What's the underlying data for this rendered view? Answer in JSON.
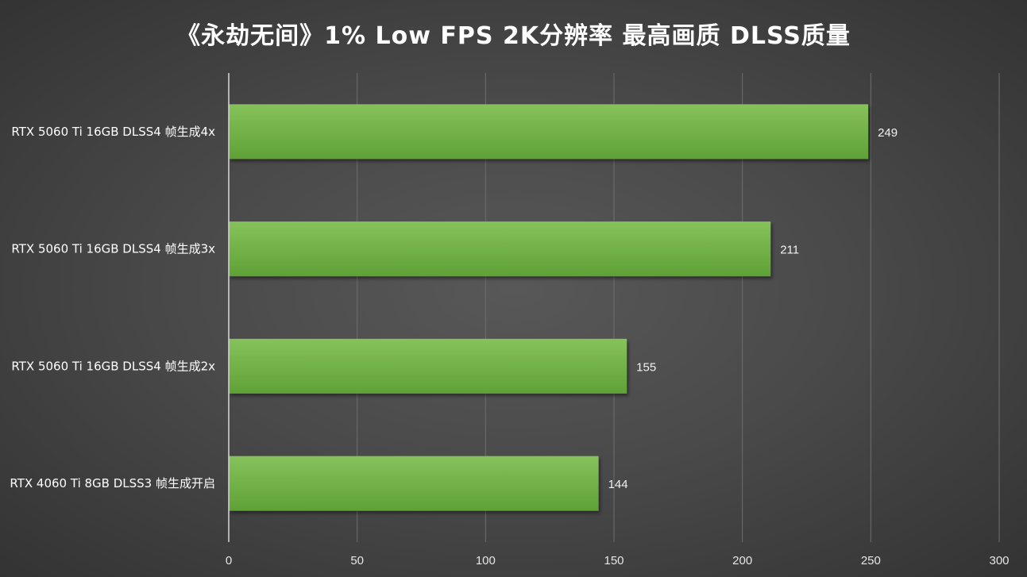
{
  "chart_data": {
    "type": "bar",
    "orientation": "horizontal",
    "title": "《永劫无间》1% Low FPS 2K分辨率 最高画质 DLSS质量",
    "categories": [
      "RTX 5060 Ti 16GB DLSS4 帧生成4x",
      "RTX 5060 Ti 16GB DLSS4 帧生成3x",
      "RTX 5060 Ti 16GB DLSS4 帧生成2x",
      "RTX 4060 Ti 8GB DLSS3 帧生成开启"
    ],
    "values": [
      249,
      211,
      155,
      144
    ],
    "xlim": [
      0,
      300
    ],
    "xticks": [
      "0",
      "50",
      "100",
      "150",
      "200",
      "250",
      "300"
    ],
    "grid": "vertical",
    "legend": "none",
    "colors": {
      "bar_top": "#86c25b",
      "bar_bottom": "#5fa136",
      "grid": "#6e6e6e",
      "axis": "#d9d9d9",
      "text": "#ffffff"
    }
  }
}
